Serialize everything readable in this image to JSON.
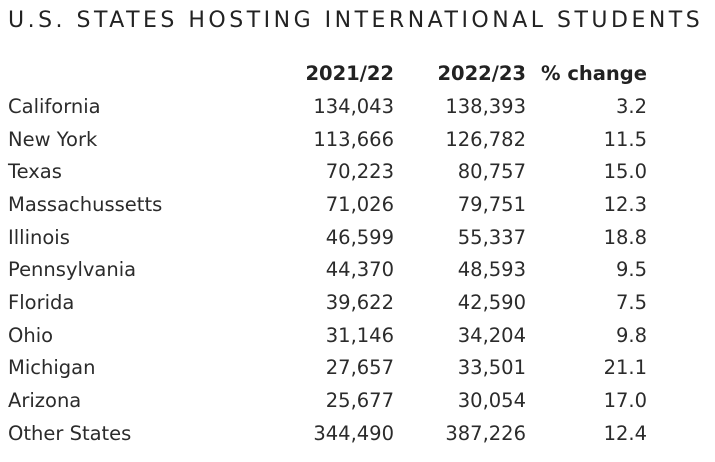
{
  "chart_data": {
    "type": "table",
    "title": "U.S. STATES HOSTING INTERNATIONAL STUDENTS",
    "columns": [
      "",
      "2021/22",
      "2022/23",
      "% change"
    ],
    "rows": [
      {
        "state": "California",
        "y2021_22": "134,043",
        "y2022_23": "138,393",
        "pct_change": "3.2"
      },
      {
        "state": "New York",
        "y2021_22": "113,666",
        "y2022_23": "126,782",
        "pct_change": "11.5"
      },
      {
        "state": "Texas",
        "y2021_22": "70,223",
        "y2022_23": "80,757",
        "pct_change": "15.0"
      },
      {
        "state": "Massachussetts",
        "y2021_22": "71,026",
        "y2022_23": "79,751",
        "pct_change": "12.3"
      },
      {
        "state": "Illinois",
        "y2021_22": "46,599",
        "y2022_23": "55,337",
        "pct_change": "18.8"
      },
      {
        "state": "Pennsylvania",
        "y2021_22": "44,370",
        "y2022_23": "48,593",
        "pct_change": "9.5"
      },
      {
        "state": "Florida",
        "y2021_22": "39,622",
        "y2022_23": "42,590",
        "pct_change": "7.5"
      },
      {
        "state": "Ohio",
        "y2021_22": "31,146",
        "y2022_23": "34,204",
        "pct_change": "9.8"
      },
      {
        "state": "Michigan",
        "y2021_22": "27,657",
        "y2022_23": "33,501",
        "pct_change": "21.1"
      },
      {
        "state": "Arizona",
        "y2021_22": "25,677",
        "y2022_23": "30,054",
        "pct_change": "17.0"
      },
      {
        "state": "Other States",
        "y2021_22": "344,490",
        "y2022_23": "387,226",
        "pct_change": "12.4"
      }
    ]
  }
}
